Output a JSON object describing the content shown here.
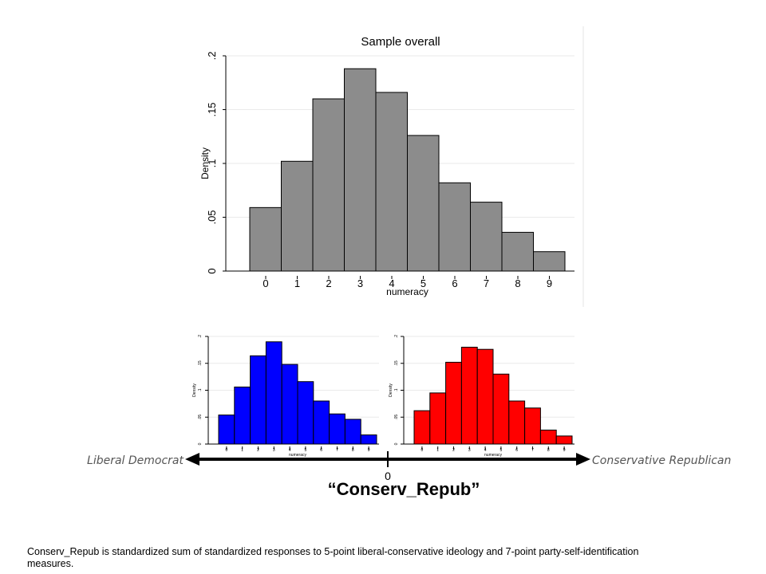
{
  "chart_data": [
    {
      "type": "bar",
      "title": "Sample overall",
      "xlabel": "numeracy",
      "ylabel": "Density",
      "categories": [
        "0",
        "1",
        "2",
        "3",
        "4",
        "5",
        "6",
        "7",
        "8",
        "9"
      ],
      "values": [
        0.059,
        0.102,
        0.16,
        0.188,
        0.166,
        0.126,
        0.082,
        0.064,
        0.036,
        0.018
      ],
      "ylim": [
        0,
        0.2
      ],
      "yticks": [
        "0",
        ".05",
        ".1",
        ".15",
        ".2"
      ],
      "color": "#8c8c8c",
      "grid": true
    },
    {
      "type": "bar",
      "title": "",
      "xlabel": "numeracy",
      "ylabel": "Density",
      "categories": [
        "0",
        "1",
        "2",
        "3",
        "4",
        "5",
        "6",
        "7",
        "8",
        "9"
      ],
      "values": [
        0.054,
        0.106,
        0.164,
        0.19,
        0.148,
        0.116,
        0.08,
        0.056,
        0.046,
        0.017
      ],
      "ylim": [
        0,
        0.2
      ],
      "yticks": [
        "0",
        ".05",
        ".1",
        ".15",
        ".2"
      ],
      "color": "#0000ff",
      "grid": true
    },
    {
      "type": "bar",
      "title": "",
      "xlabel": "numeracy",
      "ylabel": "Density",
      "categories": [
        "0",
        "1",
        "2",
        "3",
        "4",
        "5",
        "6",
        "7",
        "8",
        "9"
      ],
      "values": [
        0.062,
        0.095,
        0.152,
        0.18,
        0.176,
        0.13,
        0.08,
        0.067,
        0.026,
        0.015
      ],
      "ylim": [
        0,
        0.2
      ],
      "yticks": [
        "0",
        ".05",
        ".1",
        ".15",
        ".2"
      ],
      "color": "#ff0000",
      "grid": true
    }
  ],
  "axis": {
    "left_label": "Liberal Democrat",
    "right_label": "Conservative Republican",
    "zero_label": "0",
    "title": "“Conserv_Repub”"
  },
  "footnote": "Conserv_Repub is standardized sum of standardized responses to 5-point liberal-conservative ideology and 7-point party-self-identification measures."
}
